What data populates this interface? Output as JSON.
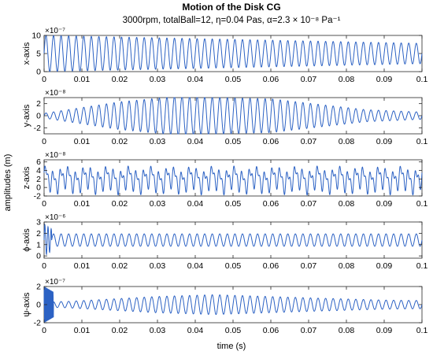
{
  "chart_data": {
    "type": "line",
    "title": "Motion of the Disk CG",
    "subtitle": "3000rpm, totalBall=12, η=0.04 Pas, α=2.3 × 10⁻⁸ Pa⁻¹",
    "shared_ylabel": "amplitudes (m)",
    "xlabel": "time (s)",
    "xlim": [
      0,
      0.1
    ],
    "xticks": [
      "0",
      "0.01",
      "0.02",
      "0.03",
      "0.04",
      "0.05",
      "0.06",
      "0.07",
      "0.08",
      "0.09",
      "0.1"
    ],
    "panels": [
      {
        "ylabel": "x-axis",
        "exponent": "×10⁻⁷",
        "ylim": [
          0,
          10
        ],
        "yticks": [
          0,
          5,
          10
        ],
        "series": {
          "kind": "decaying_sine",
          "frequency_hz": 500,
          "center": 5,
          "amplitude_start": 5,
          "amplitude_end": 2.8,
          "description_values_in_units_of_1e-7": true
        }
      },
      {
        "ylabel": "y-axis",
        "exponent": "×10⁻⁸",
        "ylim": [
          -3,
          3
        ],
        "yticks": [
          -2,
          0,
          2
        ],
        "series": {
          "kind": "growing_then_decaying_sine",
          "frequency_hz": 500,
          "center": 0,
          "envelope_points": [
            [
              0,
              0.4
            ],
            [
              0.02,
              2.3
            ],
            [
              0.035,
              3.2
            ],
            [
              0.06,
              2.8
            ],
            [
              0.085,
              1.0
            ],
            [
              0.1,
              0.6
            ]
          ]
        }
      },
      {
        "ylabel": "z-axis",
        "exponent": "×10⁻⁸",
        "ylim": [
          -2,
          6.5
        ],
        "yticks": [
          -2,
          0,
          2,
          4,
          6
        ],
        "series": {
          "kind": "multi_frequency",
          "center": 2,
          "components": [
            {
              "frequency_hz": 500,
              "amplitude": 2.0
            },
            {
              "frequency_hz": 1000,
              "amplitude": 1.2
            },
            {
              "frequency_hz": 180,
              "amplitude": 0.7
            }
          ]
        }
      },
      {
        "ylabel": "ϕ-axis",
        "exponent": "×10⁻⁶",
        "ylim": [
          -0.2,
          3
        ],
        "yticks": [
          0,
          1,
          2,
          3
        ],
        "series": {
          "kind": "transient_then_sine",
          "frequency_hz": 500,
          "center": 1.4,
          "amplitude": 0.55,
          "transient_until": 0.002,
          "transient_amplitude": 1.4
        }
      },
      {
        "ylabel": "ψ-axis",
        "exponent": "×10⁻⁷",
        "ylim": [
          -2,
          2
        ],
        "yticks": [
          -2,
          0,
          2
        ],
        "series": {
          "kind": "transient_then_sine",
          "frequency_hz": 500,
          "center": 0,
          "envelope_points": [
            [
              0.0015,
              0.3
            ],
            [
              0.006,
              0.35
            ],
            [
              0.03,
              0.9
            ],
            [
              0.045,
              1.1
            ],
            [
              0.07,
              0.75
            ],
            [
              0.09,
              0.5
            ],
            [
              0.1,
              0.45
            ]
          ],
          "transient_until": 0.0025,
          "transient_amplitude": 2.1,
          "transient_frequency_hz": 6000
        }
      }
    ]
  }
}
